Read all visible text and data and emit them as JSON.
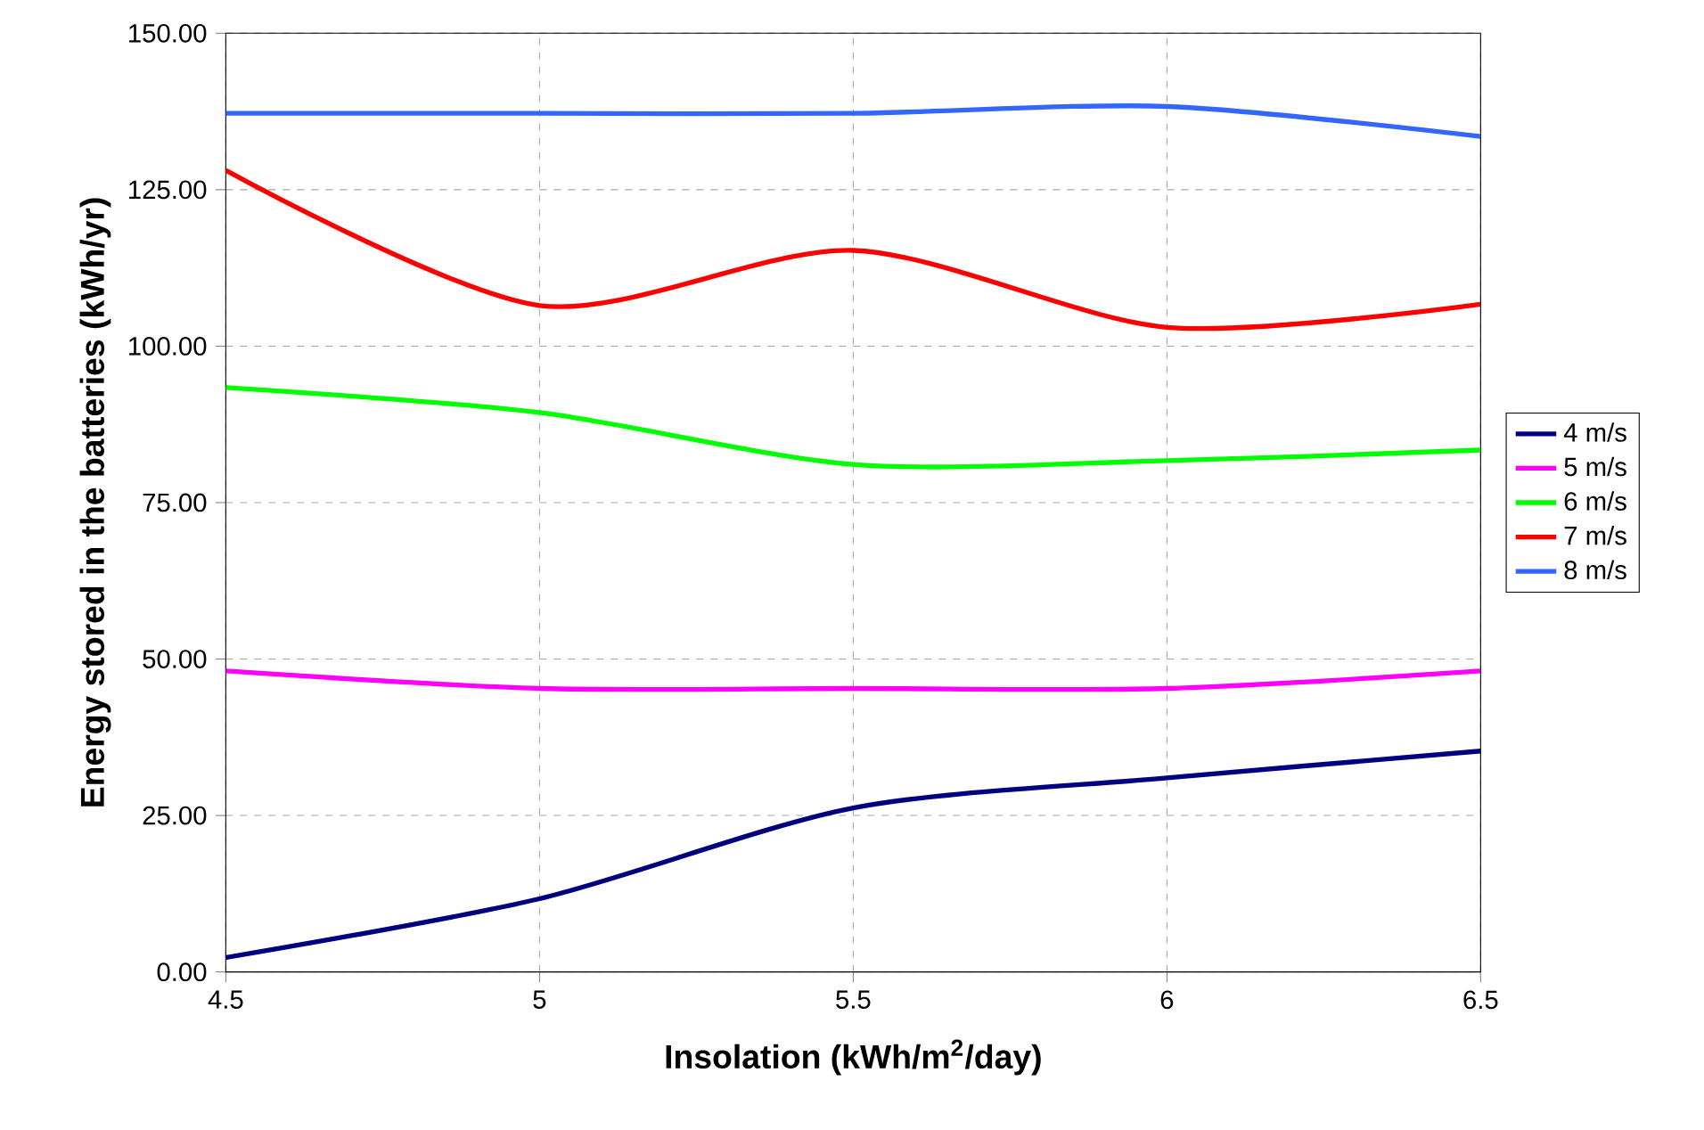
{
  "chart_data": {
    "type": "line",
    "xlabel": "Insolation (kWh/m$^{2}$/day)",
    "ylabel": "Energy stored in the batteries (kWh/yr)",
    "x": [
      4.5,
      5,
      5.5,
      6,
      6.5
    ],
    "series": [
      {
        "name": "4 m/s",
        "color": "#000080",
        "values": [
          2.3,
          11.7,
          26.2,
          31.0,
          35.3
        ]
      },
      {
        "name": "5 m/s",
        "color": "#ff00ff",
        "values": [
          48.1,
          45.3,
          45.3,
          45.3,
          48.1
        ]
      },
      {
        "name": "6 m/s",
        "color": "#00ff00",
        "values": [
          93.4,
          89.4,
          81.1,
          81.7,
          83.4
        ]
      },
      {
        "name": "7 m/s",
        "color": "#ff0000",
        "values": [
          128.1,
          106.5,
          115.3,
          103.0,
          106.7
        ]
      },
      {
        "name": "8 m/s",
        "color": "#3366ff",
        "values": [
          137.2,
          137.2,
          137.2,
          138.3,
          133.5
        ]
      }
    ],
    "xlim": [
      4.5,
      6.5
    ],
    "xticks": [
      4.5,
      5,
      5.5,
      6,
      6.5
    ],
    "ylim": [
      0,
      150
    ],
    "yticks": [
      {
        "value": 0,
        "label": "0.00"
      },
      {
        "value": 25,
        "label": "25.00"
      },
      {
        "value": 50,
        "label": "50.00"
      },
      {
        "value": 75,
        "label": "75.00"
      },
      {
        "value": 100,
        "label": "100.00"
      },
      {
        "value": 125,
        "label": "125.00"
      },
      {
        "value": 150,
        "label": "150.00"
      }
    ],
    "grid": true,
    "legend": "right",
    "marker": "none",
    "line_style": "solid"
  }
}
